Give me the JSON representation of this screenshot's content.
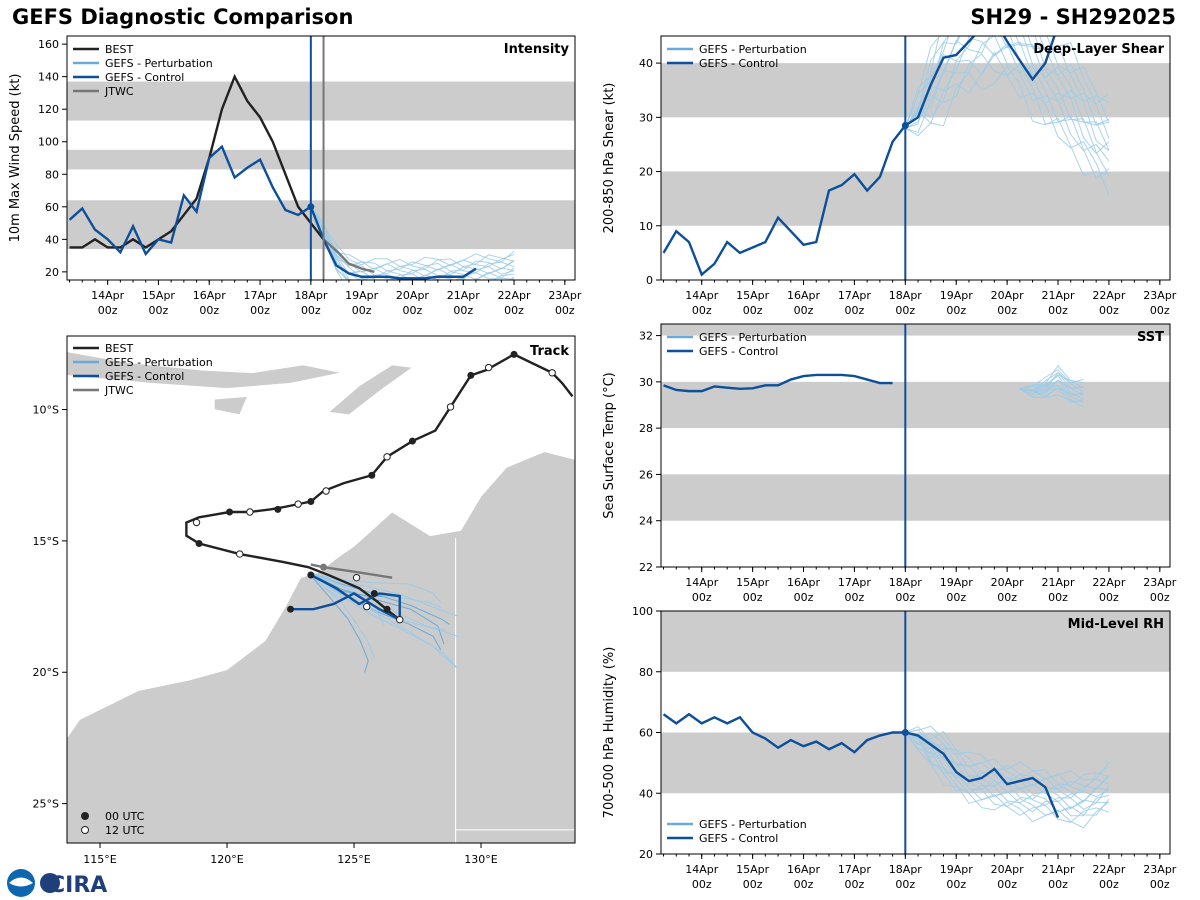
{
  "header": {
    "title": "GEFS Diagnostic Comparison",
    "storm_id": "SH29 - SH292025"
  },
  "colors": {
    "best": "#222222",
    "perturbation": "#6aaad8",
    "perturbation_thin": "#9ccbe8",
    "control": "#0d4f9a",
    "jtwc": "#777777",
    "band": "#cccccc",
    "land": "#cccccc"
  },
  "time_axis": {
    "labels": [
      "14Apr",
      "15Apr",
      "16Apr",
      "17Apr",
      "18Apr",
      "19Apr",
      "20Apr",
      "21Apr",
      "22Apr",
      "23Apr"
    ],
    "sublabel": "00z",
    "range_days": [
      -4.8,
      5.2
    ],
    "analysis_time": 0
  },
  "logo": {
    "text": "CIRA"
  },
  "chart_data": [
    {
      "id": "intensity",
      "type": "line",
      "title": "Intensity",
      "ylabel": "10m Max Wind Speed (kt)",
      "ylim": [
        15,
        165
      ],
      "yticks": [
        20,
        40,
        60,
        80,
        100,
        120,
        140,
        160
      ],
      "bands": [
        [
          34,
          64
        ],
        [
          83,
          95
        ],
        [
          113,
          137
        ]
      ],
      "jtwc_marker": 0.25,
      "legend": [
        "BEST",
        "GEFS - Perturbation",
        "GEFS - Control",
        "JTWC"
      ],
      "series": [
        {
          "name": "BEST",
          "t": [
            -4.75,
            -4.5,
            -4.25,
            -4,
            -3.75,
            -3.5,
            -3.25,
            -3,
            -2.75,
            -2.5,
            -2.25,
            -2,
            -1.75,
            -1.5,
            -1.25,
            -1,
            -0.75,
            -0.5,
            -0.25,
            0,
            0.25
          ],
          "values": [
            35,
            35,
            40,
            35,
            35,
            40,
            35,
            40,
            45,
            55,
            65,
            90,
            120,
            140,
            125,
            115,
            100,
            80,
            60,
            50,
            40
          ]
        },
        {
          "name": "GEFS - Control",
          "t": [
            -4.75,
            -4.5,
            -4.25,
            -4,
            -3.75,
            -3.5,
            -3.25,
            -3,
            -2.75,
            -2.5,
            -2.25,
            -2,
            -1.75,
            -1.5,
            -1.25,
            -1,
            -0.75,
            -0.5,
            -0.25,
            0,
            0.25,
            0.5,
            0.75,
            1,
            1.25,
            1.5,
            1.75,
            2,
            2.25,
            2.5,
            2.75,
            3,
            3.25
          ],
          "values": [
            52,
            59,
            46,
            40,
            32,
            48,
            31,
            40,
            38,
            67,
            57,
            90,
            97,
            78,
            84,
            89,
            72,
            58,
            55,
            60,
            40,
            24,
            19,
            17,
            17,
            17,
            16,
            16,
            16,
            17,
            17,
            17,
            22
          ]
        },
        {
          "name": "JTWC",
          "t": [
            0.25,
            0.5,
            0.75,
            1,
            1.25
          ],
          "values": [
            40,
            33,
            25,
            22,
            20
          ]
        },
        {
          "name": "GEFS - Perturbation",
          "t": [
            0,
            0.25,
            0.5,
            0.75,
            1,
            1.25,
            1.5,
            1.75,
            2,
            2.25,
            2.5,
            2.75,
            3,
            3.25,
            3.5,
            3.75,
            4
          ],
          "values": [
            60,
            45,
            28,
            20,
            18,
            17,
            17,
            17,
            17,
            17,
            18,
            18,
            18,
            19,
            20,
            20,
            22
          ],
          "spread": 9
        }
      ]
    },
    {
      "id": "shear",
      "type": "line",
      "title": "Deep-Layer Shear",
      "ylabel": "200-850 hPa Shear (kt)",
      "ylim": [
        0,
        45
      ],
      "yticks": [
        0,
        10,
        20,
        30,
        40
      ],
      "bands": [
        [
          10,
          20
        ],
        [
          30,
          40
        ]
      ],
      "legend": [
        "GEFS - Perturbation",
        "GEFS - Control"
      ],
      "series": [
        {
          "name": "GEFS - Control",
          "t": [
            -4.75,
            -4.5,
            -4.25,
            -4,
            -3.75,
            -3.5,
            -3.25,
            -3,
            -2.75,
            -2.5,
            -2.25,
            -2,
            -1.75,
            -1.5,
            -1.25,
            -1,
            -0.75,
            -0.5,
            -0.25,
            0,
            0.25,
            0.5,
            0.75,
            1,
            1.25,
            1.5,
            1.75,
            2,
            2.25,
            2.5,
            2.75,
            3
          ],
          "values": [
            5,
            9,
            7,
            1,
            3,
            7,
            5,
            6,
            7,
            11.5,
            9,
            6.5,
            7,
            16.5,
            17.5,
            19.5,
            16.5,
            19,
            25.5,
            28.5,
            30,
            36,
            41,
            41.5,
            44,
            46.5,
            48,
            44,
            40.5,
            37,
            40,
            47
          ]
        },
        {
          "name": "GEFS - Perturbation",
          "t": [
            0,
            0.25,
            0.5,
            0.75,
            1,
            1.25,
            1.5,
            1.75,
            2,
            2.25,
            2.5,
            2.75,
            3,
            3.25,
            3.5,
            3.75,
            4
          ],
          "values": [
            28,
            31,
            35,
            39,
            42,
            44,
            45,
            46,
            45,
            43,
            40,
            37,
            35,
            33,
            30,
            27,
            25
          ],
          "spread": 8
        }
      ]
    },
    {
      "id": "sst",
      "type": "line",
      "title": "SST",
      "ylabel": "Sea Surface Temp (°C)",
      "ylim": [
        22,
        32.5
      ],
      "yticks": [
        22,
        24,
        26,
        28,
        30,
        32
      ],
      "bands": [
        [
          24,
          26
        ],
        [
          28,
          30
        ],
        [
          32,
          34
        ]
      ],
      "legend": [
        "GEFS - Perturbation",
        "GEFS - Control"
      ],
      "series": [
        {
          "name": "GEFS - Control",
          "t": [
            -4.75,
            -4.5,
            -4.25,
            -4,
            -3.75,
            -3.5,
            -3.25,
            -3,
            -2.75,
            -2.5,
            -2.25,
            -2,
            -1.75,
            -1.5,
            -1.25,
            -1,
            -0.75,
            -0.5,
            -0.25
          ],
          "values": [
            29.85,
            29.65,
            29.6,
            29.6,
            29.8,
            29.75,
            29.7,
            29.72,
            29.85,
            29.85,
            30.1,
            30.25,
            30.3,
            30.3,
            30.3,
            30.25,
            30.1,
            29.95,
            29.95
          ]
        },
        {
          "name": "GEFS - Perturbation",
          "t": [
            2.25,
            2.5,
            2.75,
            3,
            3.25,
            3.5
          ],
          "values": [
            29.7,
            29.6,
            29.7,
            30.1,
            29.6,
            29.5
          ],
          "spread": 0.5
        }
      ]
    },
    {
      "id": "rh",
      "type": "line",
      "title": "Mid-Level RH",
      "ylabel": "700-500 hPa Humidity (%)",
      "ylim": [
        20,
        100
      ],
      "yticks": [
        20,
        40,
        60,
        80,
        100
      ],
      "bands": [
        [
          40,
          60
        ],
        [
          80,
          100
        ]
      ],
      "legend": [
        "GEFS - Perturbation",
        "GEFS - Control"
      ],
      "series": [
        {
          "name": "GEFS - Control",
          "t": [
            -4.75,
            -4.5,
            -4.25,
            -4,
            -3.75,
            -3.5,
            -3.25,
            -3,
            -2.75,
            -2.5,
            -2.25,
            -2,
            -1.75,
            -1.5,
            -1.25,
            -1,
            -0.75,
            -0.5,
            -0.25,
            0,
            0.25,
            0.5,
            0.75,
            1,
            1.25,
            1.5,
            1.75,
            2,
            2.25,
            2.5,
            2.75,
            3
          ],
          "values": [
            66,
            63,
            66,
            63,
            65,
            63,
            65,
            60,
            58,
            55,
            57.5,
            55.5,
            57,
            54.5,
            56.5,
            53.5,
            57.5,
            59,
            60,
            60,
            59,
            56,
            53,
            47,
            44,
            45,
            48,
            43,
            44,
            45,
            42,
            32
          ]
        },
        {
          "name": "GEFS - Perturbation",
          "t": [
            0,
            0.25,
            0.5,
            0.75,
            1,
            1.25,
            1.5,
            1.75,
            2,
            2.25,
            2.5,
            2.75,
            3,
            3.25,
            3.5,
            3.75,
            4
          ],
          "values": [
            60,
            58,
            55,
            52,
            48,
            45,
            44,
            43,
            42,
            41,
            40,
            40,
            39,
            38,
            38,
            40,
            42
          ],
          "spread": 7
        }
      ]
    },
    {
      "id": "track",
      "type": "scatter",
      "title": "Track",
      "xlim": [
        113.7,
        133.7
      ],
      "ylim": [
        -26.5,
        -7.2
      ],
      "xticks": [
        115,
        120,
        125,
        130
      ],
      "xtick_labels": [
        "115°E",
        "120°E",
        "125°E",
        "130°E"
      ],
      "yticks": [
        -10,
        -15,
        -20,
        -25
      ],
      "ytick_labels": [
        "10°S",
        "15°S",
        "20°S",
        "25°S"
      ],
      "legend": [
        "BEST",
        "GEFS - Perturbation",
        "GEFS - Control",
        "JTWC"
      ],
      "point_legend": [
        "00 UTC",
        "12 UTC"
      ],
      "series": [
        {
          "name": "BEST",
          "lon": [
            133.6,
            133.2,
            132.8,
            131.3,
            130.2,
            129.6,
            128.8,
            128.2,
            127.3,
            126.3,
            125.7,
            124.6,
            123.8,
            123.3,
            122.8,
            122.3,
            121.7,
            120.9,
            120.1,
            119.5,
            118.9,
            118.4,
            118.4,
            118.9,
            120.5,
            122.2,
            123.2,
            124.0,
            125.2,
            125.9,
            126.4,
            126.8
          ],
          "lat": [
            -9.5,
            -9.0,
            -8.6,
            -7.9,
            -8.5,
            -8.7,
            -9.9,
            -10.8,
            -11.2,
            -11.8,
            -12.5,
            -12.8,
            -13.1,
            -13.5,
            -13.6,
            -13.7,
            -13.8,
            -13.9,
            -13.9,
            -14.0,
            -14.1,
            -14.3,
            -14.8,
            -15.1,
            -15.5,
            -15.8,
            -16.0,
            -16.3,
            -16.8,
            -17.3,
            -17.7,
            -18.0
          ],
          "markers_00": [
            [
              131.3,
              -7.9
            ],
            [
              129.6,
              -8.7
            ],
            [
              127.3,
              -11.2
            ],
            [
              125.7,
              -12.5
            ],
            [
              123.3,
              -13.5
            ],
            [
              122.0,
              -13.8
            ],
            [
              120.1,
              -13.9
            ],
            [
              118.9,
              -15.1
            ],
            [
              125.8,
              -17.0
            ],
            [
              126.3,
              -17.6
            ],
            [
              122.5,
              -17.6
            ],
            [
              123.3,
              -16.3
            ]
          ],
          "markers_12": [
            [
              132.8,
              -8.6
            ],
            [
              130.3,
              -8.4
            ],
            [
              128.8,
              -9.9
            ],
            [
              126.3,
              -11.8
            ],
            [
              123.9,
              -13.1
            ],
            [
              122.8,
              -13.6
            ],
            [
              120.9,
              -13.9
            ],
            [
              118.8,
              -14.3
            ],
            [
              120.5,
              -15.5
            ],
            [
              125.1,
              -16.4
            ],
            [
              125.5,
              -17.5
            ],
            [
              126.8,
              -18.0
            ]
          ]
        },
        {
          "name": "GEFS - Control",
          "lon": [
            123.3,
            124.3,
            125.2,
            126.0,
            126.8,
            126.8,
            126.0,
            125.0,
            124.2,
            123.4,
            122.5
          ],
          "lat": [
            -16.3,
            -16.8,
            -17.4,
            -17.0,
            -17.1,
            -18.0,
            -17.6,
            -17.0,
            -17.4,
            -17.6,
            -17.6
          ]
        },
        {
          "name": "JTWC",
          "lon": [
            123.3,
            123.8,
            125.2,
            126.5
          ],
          "lat": [
            -15.9,
            -16.0,
            -16.2,
            -16.4
          ]
        },
        {
          "name": "GEFS - Perturbation",
          "lon": [
            123.2,
            124.5,
            125.8,
            127.0,
            128.2,
            128.8
          ],
          "lat": [
            -16.2,
            -16.8,
            -17.3,
            -17.7,
            -18.2,
            -18.6
          ],
          "spread": 1.5
        }
      ]
    }
  ]
}
